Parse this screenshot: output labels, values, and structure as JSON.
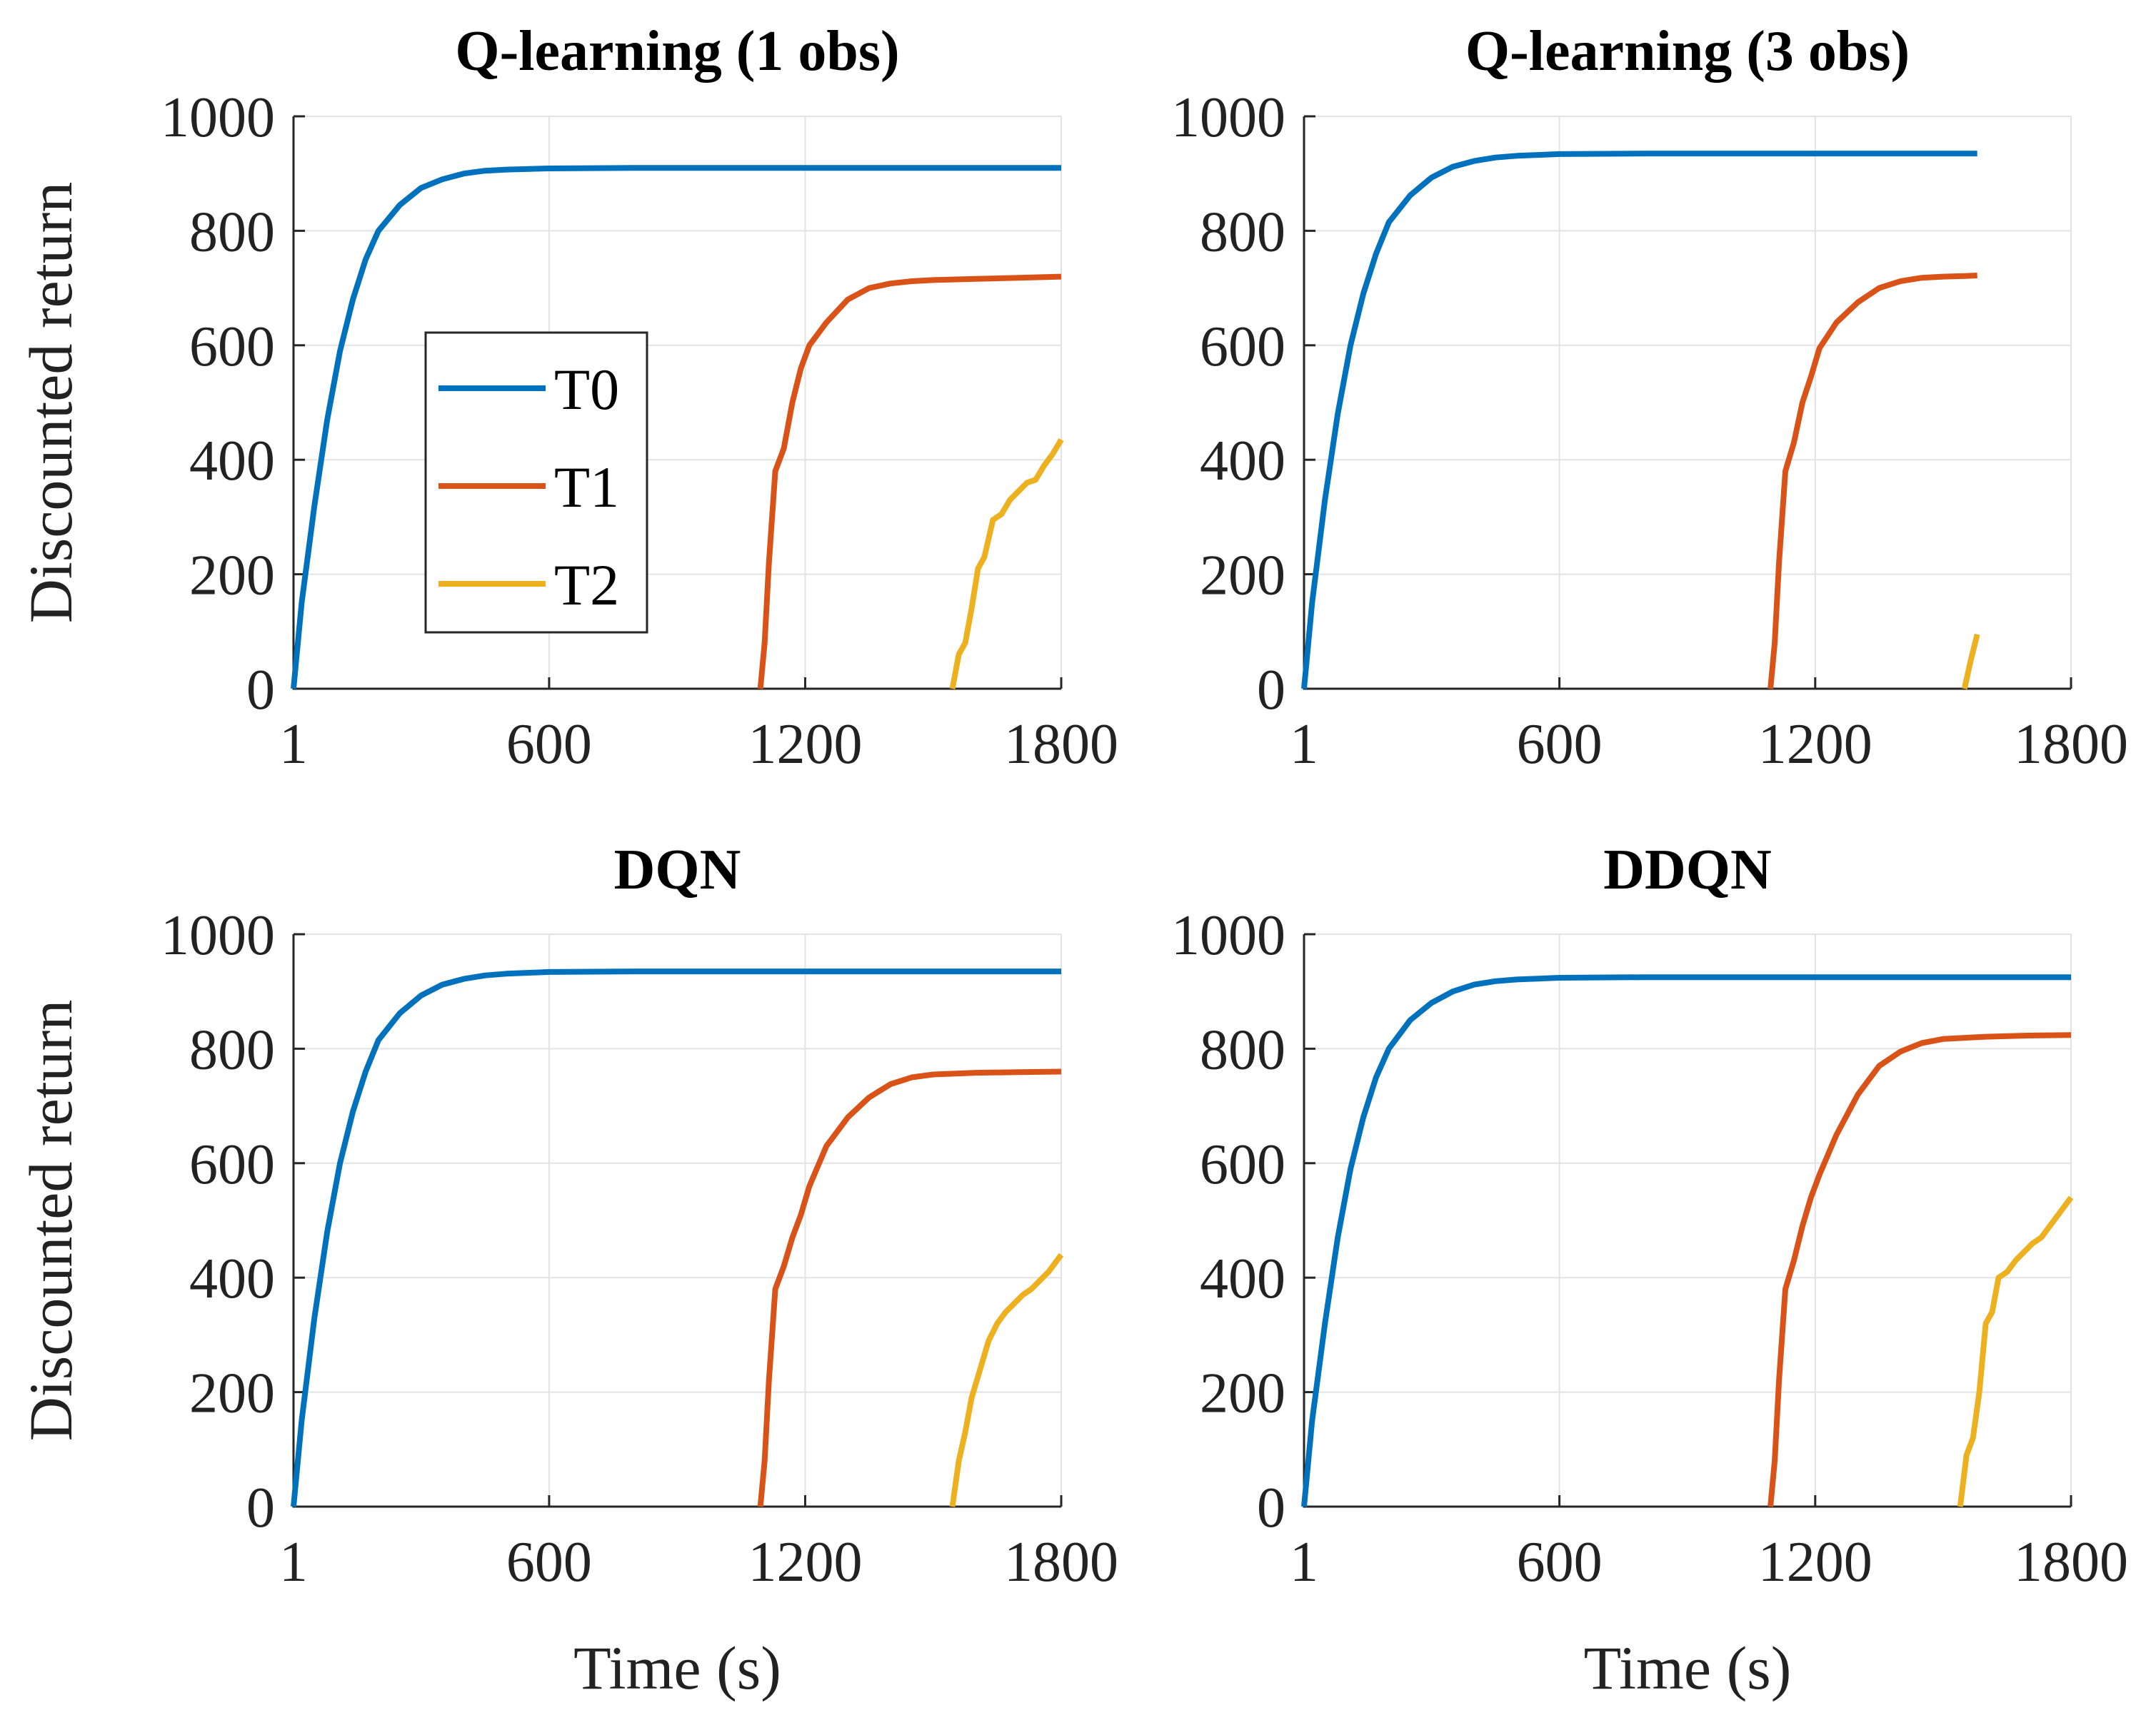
{
  "figure": {
    "colors": {
      "T0": "#0072BD",
      "T1": "#D95319",
      "T2": "#EDB120"
    },
    "legend": {
      "entries": [
        "T0",
        "T1",
        "T2"
      ],
      "placement": "inside top-panel-1, left-center"
    }
  },
  "chart_data": [
    {
      "type": "line",
      "title": "Q-learning (1 obs)",
      "xlabel": "",
      "ylabel": "Discounted return",
      "xlim": [
        1,
        1800
      ],
      "ylim": [
        0,
        1000
      ],
      "xticks": [
        "1",
        "600",
        "1200",
        "1800"
      ],
      "yticks": [
        "0",
        "200",
        "400",
        "600",
        "800",
        "1000"
      ],
      "series": [
        {
          "name": "T0",
          "x": [
            1,
            20,
            50,
            80,
            110,
            140,
            170,
            200,
            250,
            300,
            350,
            400,
            450,
            500,
            600,
            800,
            1000,
            1400,
            1800
          ],
          "y": [
            0,
            150,
            320,
            470,
            590,
            680,
            750,
            800,
            845,
            875,
            890,
            900,
            905,
            907,
            909,
            910,
            910,
            910,
            910
          ]
        },
        {
          "name": "T1",
          "x": [
            1095,
            1105,
            1115,
            1130,
            1150,
            1170,
            1190,
            1210,
            1250,
            1300,
            1350,
            1400,
            1450,
            1500,
            1600,
            1700,
            1800
          ],
          "y": [
            0,
            80,
            220,
            380,
            420,
            500,
            560,
            600,
            640,
            680,
            700,
            708,
            712,
            714,
            716,
            718,
            720
          ]
        },
        {
          "name": "T2",
          "x": [
            1545,
            1560,
            1575,
            1590,
            1605,
            1620,
            1640,
            1660,
            1680,
            1700,
            1720,
            1740,
            1760,
            1780,
            1800
          ],
          "y": [
            0,
            60,
            80,
            140,
            210,
            230,
            295,
            305,
            330,
            345,
            360,
            365,
            390,
            410,
            435
          ]
        }
      ]
    },
    {
      "type": "line",
      "title": "Q-learning (3 obs)",
      "xlabel": "",
      "ylabel": "",
      "xlim": [
        1,
        1800
      ],
      "ylim": [
        0,
        1000
      ],
      "xticks": [
        "1",
        "600",
        "1200",
        "1800"
      ],
      "yticks": [
        "0",
        "200",
        "400",
        "600",
        "800",
        "1000"
      ],
      "series": [
        {
          "name": "T0",
          "x": [
            1,
            20,
            50,
            80,
            110,
            140,
            170,
            200,
            250,
            300,
            350,
            400,
            450,
            500,
            600,
            800,
            1000,
            1300,
            1580
          ],
          "y": [
            0,
            150,
            330,
            480,
            600,
            690,
            760,
            815,
            862,
            893,
            912,
            922,
            928,
            931,
            934,
            935,
            935,
            935,
            935
          ]
        },
        {
          "name": "T1",
          "x": [
            1095,
            1105,
            1115,
            1130,
            1150,
            1170,
            1190,
            1210,
            1250,
            1300,
            1350,
            1400,
            1450,
            1500,
            1550,
            1580
          ],
          "y": [
            0,
            80,
            220,
            380,
            430,
            500,
            545,
            595,
            640,
            675,
            700,
            712,
            718,
            720,
            721,
            722
          ]
        },
        {
          "name": "T2",
          "x": [
            1550,
            1565,
            1580
          ],
          "y": [
            0,
            50,
            95
          ]
        }
      ]
    },
    {
      "type": "line",
      "title": "DQN",
      "xlabel": "Time (s)",
      "ylabel": "Discounted return",
      "xlim": [
        1,
        1800
      ],
      "ylim": [
        0,
        1000
      ],
      "xticks": [
        "1",
        "600",
        "1200",
        "1800"
      ],
      "yticks": [
        "0",
        "200",
        "400",
        "600",
        "800",
        "1000"
      ],
      "series": [
        {
          "name": "T0",
          "x": [
            1,
            20,
            50,
            80,
            110,
            140,
            170,
            200,
            250,
            300,
            350,
            400,
            450,
            500,
            600,
            800,
            1000,
            1400,
            1800
          ],
          "y": [
            0,
            150,
            330,
            480,
            600,
            690,
            760,
            815,
            862,
            893,
            912,
            922,
            928,
            931,
            934,
            935,
            935,
            935,
            935
          ]
        },
        {
          "name": "T1",
          "x": [
            1095,
            1105,
            1115,
            1130,
            1150,
            1170,
            1190,
            1210,
            1250,
            1300,
            1350,
            1400,
            1450,
            1500,
            1600,
            1700,
            1800
          ],
          "y": [
            0,
            80,
            220,
            380,
            420,
            470,
            510,
            560,
            630,
            680,
            715,
            738,
            750,
            755,
            758,
            759,
            760
          ]
        },
        {
          "name": "T2",
          "x": [
            1545,
            1560,
            1575,
            1590,
            1610,
            1630,
            1650,
            1670,
            1690,
            1710,
            1730,
            1750,
            1770,
            1800
          ],
          "y": [
            0,
            80,
            130,
            190,
            240,
            290,
            320,
            340,
            355,
            370,
            380,
            395,
            410,
            440
          ]
        }
      ]
    },
    {
      "type": "line",
      "title": "DDQN",
      "xlabel": "Time (s)",
      "ylabel": "",
      "xlim": [
        1,
        1800
      ],
      "ylim": [
        0,
        1000
      ],
      "xticks": [
        "1",
        "600",
        "1200",
        "1800"
      ],
      "yticks": [
        "0",
        "200",
        "400",
        "600",
        "800",
        "1000"
      ],
      "series": [
        {
          "name": "T0",
          "x": [
            1,
            20,
            50,
            80,
            110,
            140,
            170,
            200,
            250,
            300,
            350,
            400,
            450,
            500,
            600,
            800,
            1000,
            1400,
            1800
          ],
          "y": [
            0,
            150,
            320,
            470,
            590,
            680,
            750,
            800,
            850,
            880,
            900,
            912,
            918,
            921,
            924,
            925,
            925,
            925,
            925
          ]
        },
        {
          "name": "T1",
          "x": [
            1095,
            1105,
            1115,
            1130,
            1150,
            1170,
            1190,
            1210,
            1250,
            1300,
            1350,
            1400,
            1450,
            1500,
            1600,
            1700,
            1800
          ],
          "y": [
            0,
            80,
            220,
            380,
            430,
            490,
            540,
            580,
            650,
            720,
            770,
            795,
            810,
            817,
            821,
            823,
            824
          ]
        },
        {
          "name": "T2",
          "x": [
            1540,
            1555,
            1570,
            1585,
            1600,
            1615,
            1630,
            1650,
            1670,
            1690,
            1710,
            1730,
            1750,
            1775,
            1800
          ],
          "y": [
            0,
            90,
            120,
            200,
            320,
            340,
            400,
            410,
            430,
            445,
            460,
            470,
            490,
            515,
            540
          ]
        }
      ]
    }
  ]
}
